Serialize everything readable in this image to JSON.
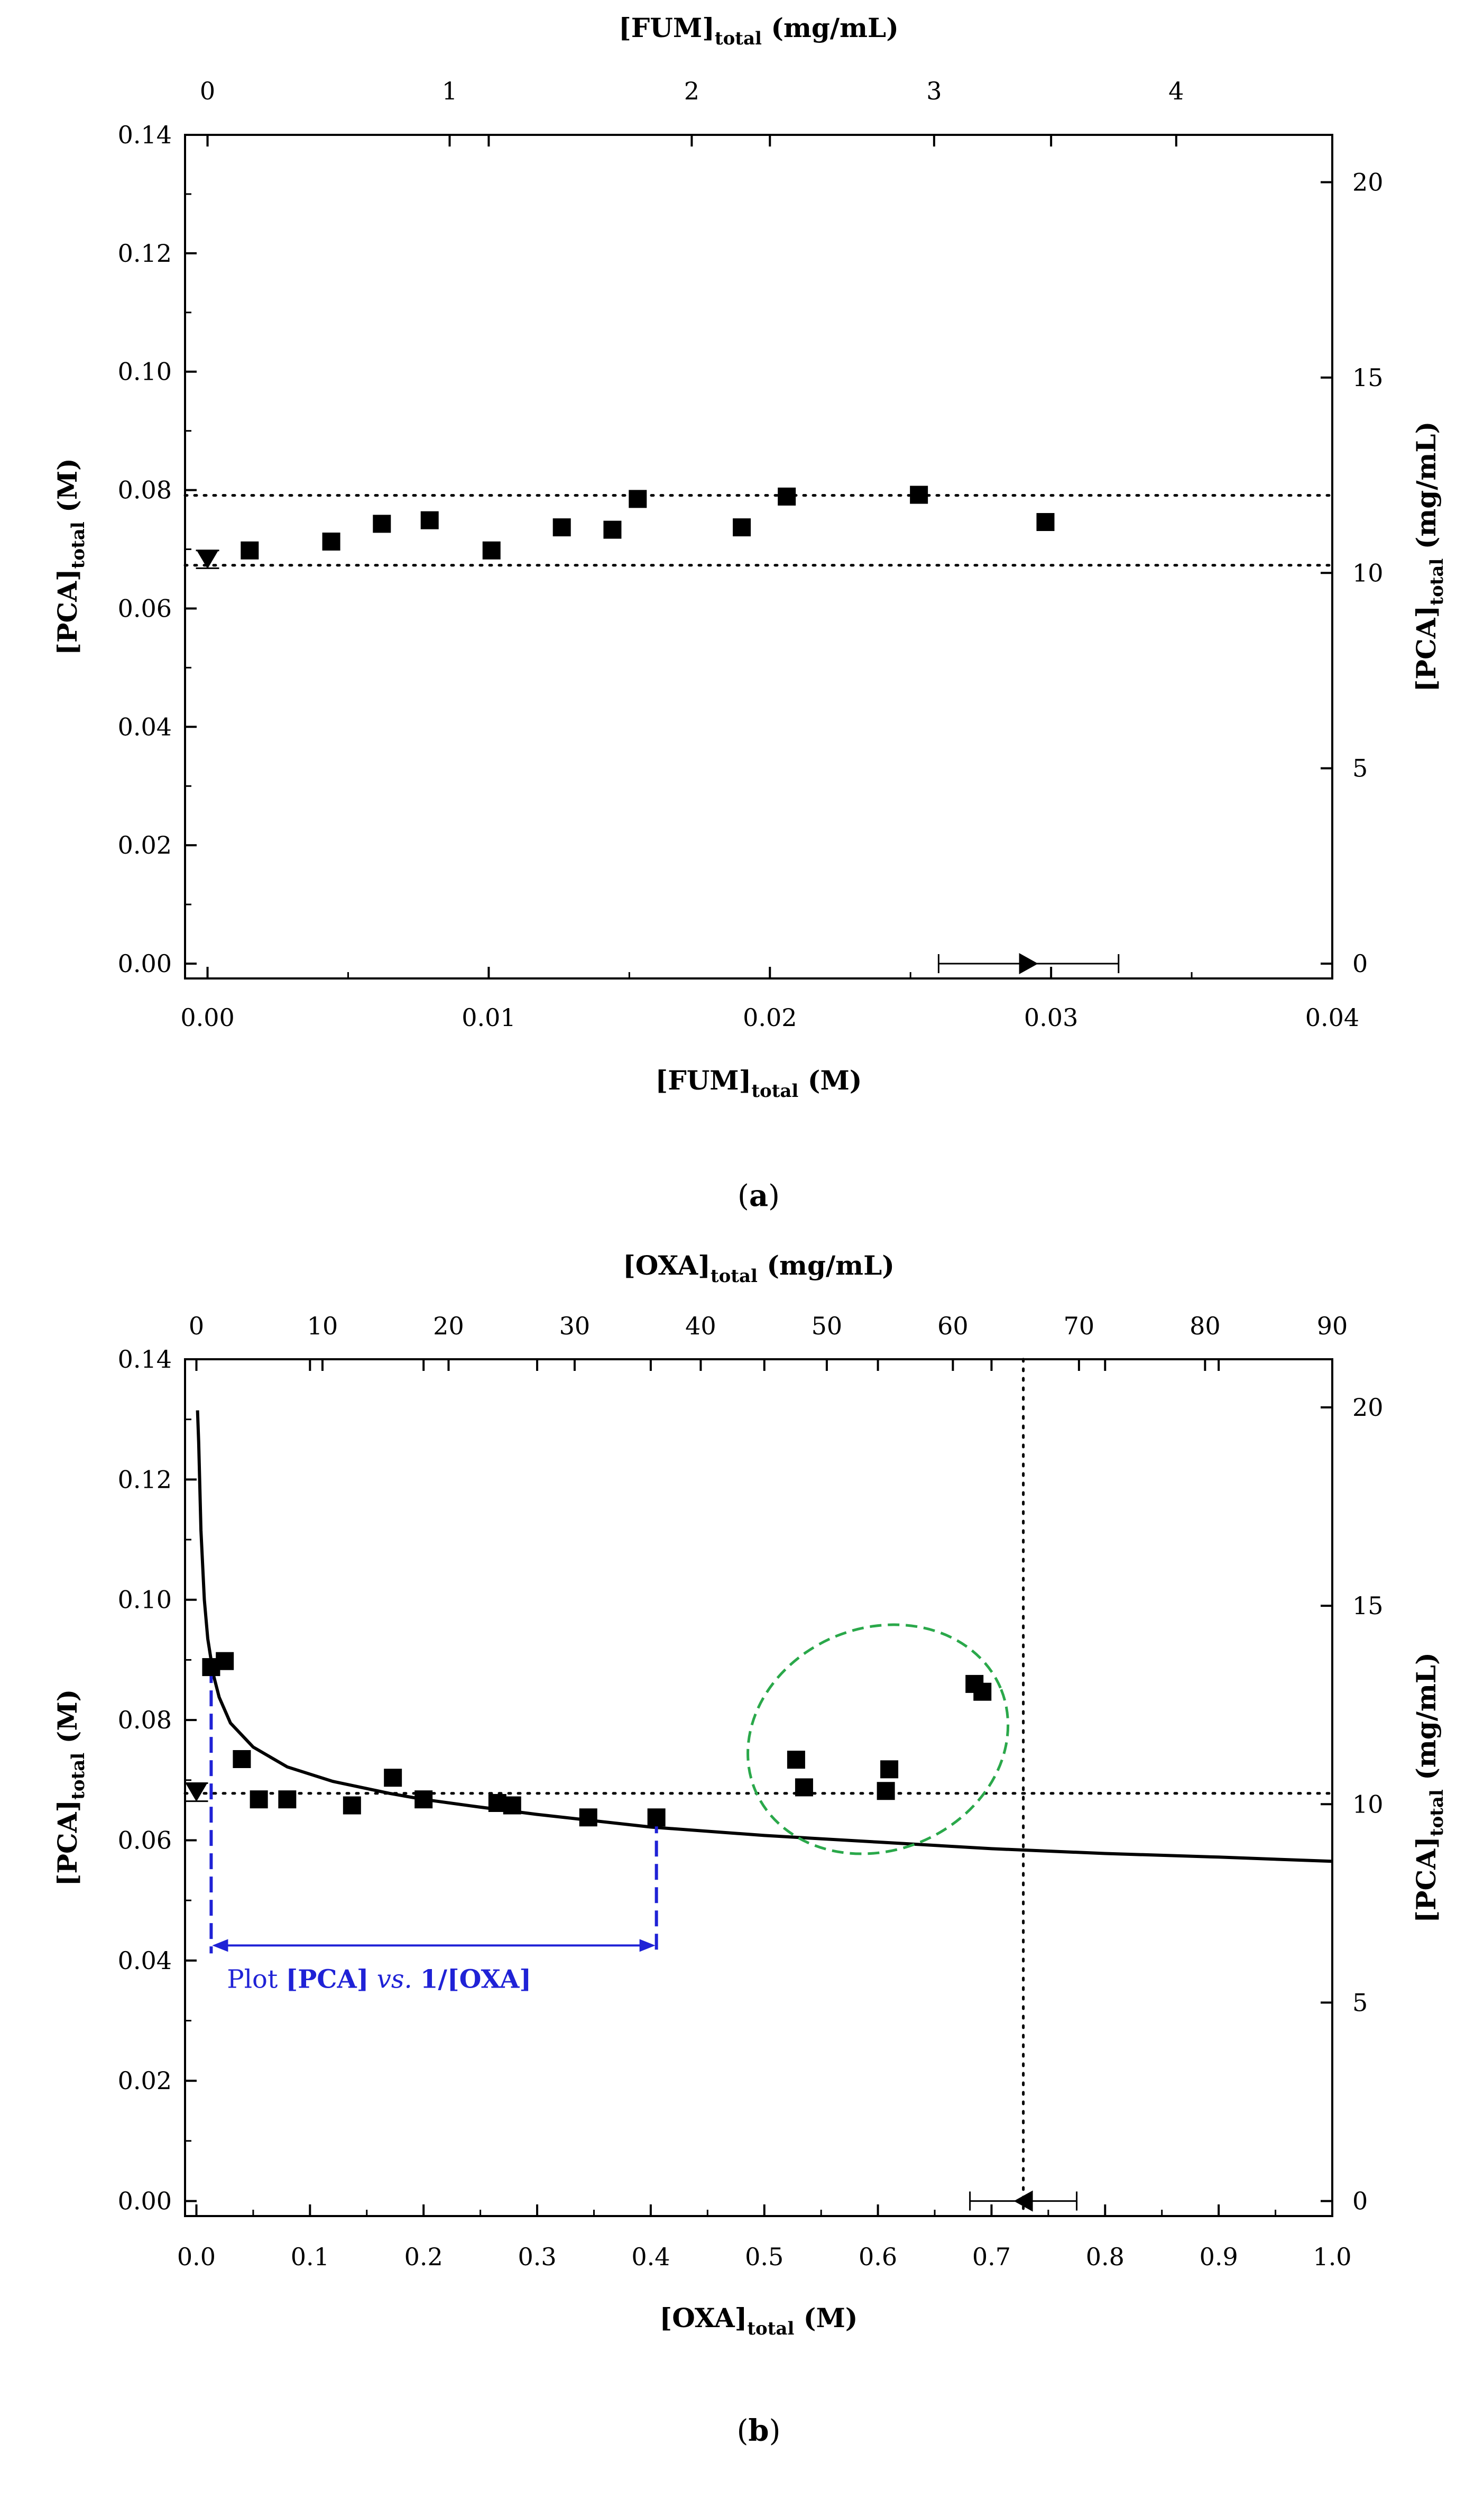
{
  "chart_data": [
    {
      "id": "a",
      "type": "scatter",
      "panel_label": "a",
      "x_title": "[FUM]",
      "x_title_sub": "total",
      "x_title_unit": "(M)",
      "top_title": "[FUM]",
      "top_title_sub": "total",
      "top_title_unit": "(mg/mL)",
      "y_title": "[PCA]",
      "y_title_sub": "total",
      "y_title_unit": "(M)",
      "right_title": "[PCA]",
      "right_title_sub": "total",
      "right_title_unit": "(mg/mL)",
      "xlim": [
        -0.0008,
        0.04
      ],
      "ylim": [
        -0.0025,
        0.14
      ],
      "x_ticks": [
        0,
        0.01,
        0.02,
        0.03,
        0.04
      ],
      "x_tick_labels": [
        "0.00",
        "0.01",
        "0.02",
        "0.03",
        "0.04"
      ],
      "y_ticks": [
        0,
        0.02,
        0.04,
        0.06,
        0.08,
        0.1,
        0.12,
        0.14
      ],
      "y_tick_labels": [
        "0.00",
        "0.02",
        "0.04",
        "0.06",
        "0.08",
        "0.10",
        "0.12",
        "0.14"
      ],
      "top_ticks_x": [
        0,
        0.00861,
        0.01722,
        0.02584,
        0.03445
      ],
      "top_tick_labels": [
        "0",
        "1",
        "2",
        "3",
        "4"
      ],
      "right_ticks_y": [
        0,
        0.033,
        0.066,
        0.099,
        0.132
      ],
      "right_tick_labels": [
        "0",
        "5",
        "10",
        "15",
        "20"
      ],
      "points": {
        "x": [
          0.0015,
          0.0044,
          0.0062,
          0.0079,
          0.0101,
          0.0126,
          0.0144,
          0.0153,
          0.019,
          0.0206,
          0.0253,
          0.0298
        ],
        "y": [
          0.0698,
          0.0713,
          0.0743,
          0.0749,
          0.0698,
          0.0737,
          0.0733,
          0.0785,
          0.0737,
          0.0789,
          0.0792,
          0.0746
        ]
      },
      "hlines": [
        0.0791,
        0.0673
      ],
      "vlines": [],
      "marker_down": {
        "x": 0.0,
        "y": 0.0683,
        "err": 0.0015
      },
      "marker_side": {
        "x": 0.0292,
        "y": 0.0,
        "err": 0.0032,
        "dir": "right"
      },
      "curve": []
    },
    {
      "id": "b",
      "type": "scatter",
      "panel_label": "b",
      "x_title": "[OXA]",
      "x_title_sub": "total",
      "x_title_unit": "(M)",
      "top_title": "[OXA]",
      "top_title_sub": "total",
      "top_title_unit": "(mg/mL)",
      "y_title": "[PCA]",
      "y_title_sub": "total",
      "y_title_unit": "(M)",
      "right_title": "[PCA]",
      "right_title_sub": "total",
      "right_title_unit": "(mg/mL)",
      "xlim": [
        -0.01,
        1.0
      ],
      "ylim": [
        -0.0025,
        0.14
      ],
      "x_ticks": [
        0,
        0.1,
        0.2,
        0.3,
        0.4,
        0.5,
        0.6,
        0.7,
        0.8,
        0.9,
        1.0
      ],
      "x_tick_labels": [
        "0.0",
        "0.1",
        "0.2",
        "0.3",
        "0.4",
        "0.5",
        "0.6",
        "0.7",
        "0.8",
        "0.9",
        "1.0"
      ],
      "y_ticks": [
        0,
        0.02,
        0.04,
        0.06,
        0.08,
        0.1,
        0.12,
        0.14
      ],
      "y_tick_labels": [
        "0.00",
        "0.02",
        "0.04",
        "0.06",
        "0.08",
        "0.10",
        "0.12",
        "0.14"
      ],
      "top_ticks_x": [
        0,
        0.111,
        0.222,
        0.333,
        0.444,
        0.555,
        0.666,
        0.777,
        0.888,
        1.0
      ],
      "top_tick_labels": [
        "0",
        "10",
        "20",
        "30",
        "40",
        "50",
        "60",
        "70",
        "80",
        "90"
      ],
      "right_ticks_y": [
        0,
        0.033,
        0.066,
        0.099,
        0.132
      ],
      "right_tick_labels": [
        "0",
        "5",
        "10",
        "15",
        "20"
      ],
      "points": {
        "x": [
          0.013,
          0.025,
          0.04,
          0.055,
          0.08,
          0.137,
          0.173,
          0.2,
          0.265,
          0.278,
          0.345,
          0.405,
          0.528,
          0.535,
          0.607,
          0.61,
          0.685,
          0.692
        ],
        "y": [
          0.0888,
          0.0898,
          0.0735,
          0.0668,
          0.0668,
          0.0658,
          0.0704,
          0.0668,
          0.0662,
          0.0658,
          0.0638,
          0.0638,
          0.0734,
          0.0688,
          0.0682,
          0.0718,
          0.086,
          0.0847
        ]
      },
      "hlines": [
        0.0678
      ],
      "vlines": [
        0.728
      ],
      "marker_down": {
        "x": 0.0,
        "y": 0.068,
        "err": 0.0015
      },
      "marker_side": {
        "x": 0.728,
        "y": 0.0,
        "err": 0.047,
        "dir": "left"
      },
      "curve": [
        [
          0.001,
          0.1315
        ],
        [
          0.002,
          0.1262
        ],
        [
          0.004,
          0.1115
        ],
        [
          0.007,
          0.1
        ],
        [
          0.01,
          0.0935
        ],
        [
          0.015,
          0.0875
        ],
        [
          0.02,
          0.0838
        ],
        [
          0.03,
          0.0795
        ],
        [
          0.05,
          0.0755
        ],
        [
          0.08,
          0.0722
        ],
        [
          0.12,
          0.0698
        ],
        [
          0.17,
          0.0678
        ],
        [
          0.2,
          0.0668
        ],
        [
          0.25,
          0.0655
        ],
        [
          0.3,
          0.0643
        ],
        [
          0.4,
          0.0622
        ],
        [
          0.5,
          0.0608
        ],
        [
          0.6,
          0.0597
        ],
        [
          0.7,
          0.0586
        ],
        [
          0.8,
          0.0578
        ],
        [
          0.9,
          0.0572
        ],
        [
          1.0,
          0.0565
        ]
      ],
      "ellipse": {
        "cx": 0.6,
        "cy": 0.0768,
        "rx": 0.117,
        "ry": 0.0185,
        "color": "#2aa84a"
      },
      "range_annotation": {
        "x1": 0.013,
        "x2": 0.405,
        "y_top": 0.0888,
        "y_bottom": 0.0638,
        "arrow_y": 0.0425,
        "color": "#1f22d6",
        "label_prefix": "Plot ",
        "label_bold1": "[PCA]",
        "label_ital": " vs. ",
        "label_bold2": "1/[OXA]"
      }
    }
  ]
}
